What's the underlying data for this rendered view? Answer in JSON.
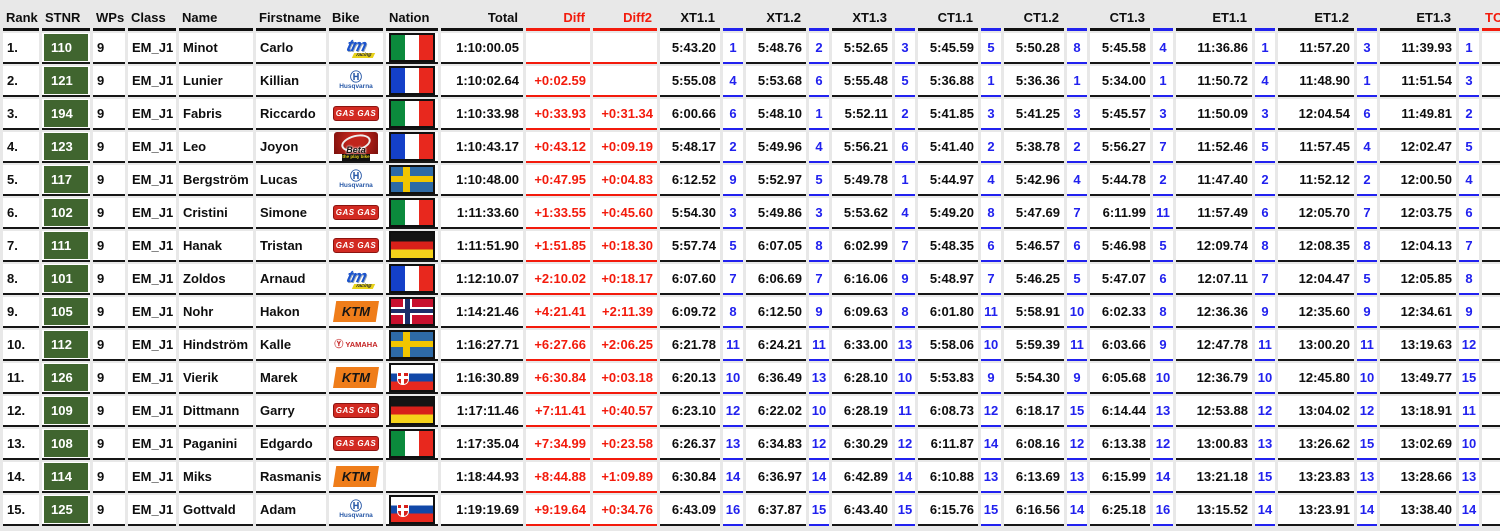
{
  "page": {
    "background": "#e8e8e8"
  },
  "colors": {
    "accent_red": "#f31b0c",
    "accent_blue": "#2121ee",
    "stnr_green": "#40652f",
    "border_black": "#161616",
    "cell_white": "#ffffff"
  },
  "table": {
    "columns": {
      "main": [
        "Rank",
        "STNR",
        "WPs",
        "Class",
        "Name",
        "Firstname",
        "Bike",
        "Nation",
        "Total",
        "Diff",
        "Diff2"
      ],
      "stages": [
        "XT1.1",
        "XT1.2",
        "XT1.3",
        "CT1.1",
        "CT1.2",
        "CT1.3",
        "ET1.1",
        "ET1.2",
        "ET1.3"
      ],
      "tc": "TC-"
    },
    "rows": [
      {
        "rank": "1.",
        "stnr": "110",
        "wps": "9",
        "class": "EM_J1",
        "name": "Minot",
        "firstname": "Carlo",
        "bike": "TM",
        "nation": "ITA",
        "total": "1:10:00.05",
        "diff": "",
        "diff2": "",
        "stages": [
          [
            "5:43.20",
            "1"
          ],
          [
            "5:48.76",
            "2"
          ],
          [
            "5:52.65",
            "3"
          ],
          [
            "5:45.59",
            "5"
          ],
          [
            "5:50.28",
            "8"
          ],
          [
            "5:45.58",
            "4"
          ],
          [
            "11:36.86",
            "1"
          ],
          [
            "11:57.20",
            "3"
          ],
          [
            "11:39.93",
            "1"
          ]
        ],
        "tc": ""
      },
      {
        "rank": "2.",
        "stnr": "121",
        "wps": "9",
        "class": "EM_J1",
        "name": "Lunier",
        "firstname": "Killian",
        "bike": "Husqvarna",
        "nation": "FRA",
        "total": "1:10:02.64",
        "diff": "+0:02.59",
        "diff2": "",
        "stages": [
          [
            "5:55.08",
            "4"
          ],
          [
            "5:53.68",
            "6"
          ],
          [
            "5:55.48",
            "5"
          ],
          [
            "5:36.88",
            "1"
          ],
          [
            "5:36.36",
            "1"
          ],
          [
            "5:34.00",
            "1"
          ],
          [
            "11:50.72",
            "4"
          ],
          [
            "11:48.90",
            "1"
          ],
          [
            "11:51.54",
            "3"
          ]
        ],
        "tc": ""
      },
      {
        "rank": "3.",
        "stnr": "194",
        "wps": "9",
        "class": "EM_J1",
        "name": "Fabris",
        "firstname": "Riccardo",
        "bike": "GasGas",
        "nation": "ITA",
        "total": "1:10:33.98",
        "diff": "+0:33.93",
        "diff2": "+0:31.34",
        "stages": [
          [
            "6:00.66",
            "6"
          ],
          [
            "5:48.10",
            "1"
          ],
          [
            "5:52.11",
            "2"
          ],
          [
            "5:41.85",
            "3"
          ],
          [
            "5:41.25",
            "3"
          ],
          [
            "5:45.57",
            "3"
          ],
          [
            "11:50.09",
            "3"
          ],
          [
            "12:04.54",
            "6"
          ],
          [
            "11:49.81",
            "2"
          ]
        ],
        "tc": ""
      },
      {
        "rank": "4.",
        "stnr": "123",
        "wps": "9",
        "class": "EM_J1",
        "name": "Leo",
        "firstname": "Joyon",
        "bike": "Beta",
        "nation": "FRA",
        "total": "1:10:43.17",
        "diff": "+0:43.12",
        "diff2": "+0:09.19",
        "stages": [
          [
            "5:48.17",
            "2"
          ],
          [
            "5:49.96",
            "4"
          ],
          [
            "5:56.21",
            "6"
          ],
          [
            "5:41.40",
            "2"
          ],
          [
            "5:38.78",
            "2"
          ],
          [
            "5:56.27",
            "7"
          ],
          [
            "11:52.46",
            "5"
          ],
          [
            "11:57.45",
            "4"
          ],
          [
            "12:02.47",
            "5"
          ]
        ],
        "tc": ""
      },
      {
        "rank": "5.",
        "stnr": "117",
        "wps": "9",
        "class": "EM_J1",
        "name": "Bergström",
        "firstname": "Lucas",
        "bike": "Husqvarna",
        "nation": "SWE",
        "total": "1:10:48.00",
        "diff": "+0:47.95",
        "diff2": "+0:04.83",
        "stages": [
          [
            "6:12.52",
            "9"
          ],
          [
            "5:52.97",
            "5"
          ],
          [
            "5:49.78",
            "1"
          ],
          [
            "5:44.97",
            "4"
          ],
          [
            "5:42.96",
            "4"
          ],
          [
            "5:44.78",
            "2"
          ],
          [
            "11:47.40",
            "2"
          ],
          [
            "11:52.12",
            "2"
          ],
          [
            "12:00.50",
            "4"
          ]
        ],
        "tc": ""
      },
      {
        "rank": "6.",
        "stnr": "102",
        "wps": "9",
        "class": "EM_J1",
        "name": "Cristini",
        "firstname": "Simone",
        "bike": "GasGas",
        "nation": "ITA",
        "total": "1:11:33.60",
        "diff": "+1:33.55",
        "diff2": "+0:45.60",
        "stages": [
          [
            "5:54.30",
            "3"
          ],
          [
            "5:49.86",
            "3"
          ],
          [
            "5:53.62",
            "4"
          ],
          [
            "5:49.20",
            "8"
          ],
          [
            "5:47.69",
            "7"
          ],
          [
            "6:11.99",
            "11"
          ],
          [
            "11:57.49",
            "6"
          ],
          [
            "12:05.70",
            "7"
          ],
          [
            "12:03.75",
            "6"
          ]
        ],
        "tc": ""
      },
      {
        "rank": "7.",
        "stnr": "111",
        "wps": "9",
        "class": "EM_J1",
        "name": "Hanak",
        "firstname": "Tristan",
        "bike": "GasGas",
        "nation": "GER",
        "total": "1:11:51.90",
        "diff": "+1:51.85",
        "diff2": "+0:18.30",
        "stages": [
          [
            "5:57.74",
            "5"
          ],
          [
            "6:07.05",
            "8"
          ],
          [
            "6:02.99",
            "7"
          ],
          [
            "5:48.35",
            "6"
          ],
          [
            "5:46.57",
            "6"
          ],
          [
            "5:46.98",
            "5"
          ],
          [
            "12:09.74",
            "8"
          ],
          [
            "12:08.35",
            "8"
          ],
          [
            "12:04.13",
            "7"
          ]
        ],
        "tc": ""
      },
      {
        "rank": "8.",
        "stnr": "101",
        "wps": "9",
        "class": "EM_J1",
        "name": "Zoldos",
        "firstname": "Arnaud",
        "bike": "TM",
        "nation": "FRA",
        "total": "1:12:10.07",
        "diff": "+2:10.02",
        "diff2": "+0:18.17",
        "stages": [
          [
            "6:07.60",
            "7"
          ],
          [
            "6:06.69",
            "7"
          ],
          [
            "6:16.06",
            "9"
          ],
          [
            "5:48.97",
            "7"
          ],
          [
            "5:46.25",
            "5"
          ],
          [
            "5:47.07",
            "6"
          ],
          [
            "12:07.11",
            "7"
          ],
          [
            "12:04.47",
            "5"
          ],
          [
            "12:05.85",
            "8"
          ]
        ],
        "tc": ""
      },
      {
        "rank": "9.",
        "stnr": "105",
        "wps": "9",
        "class": "EM_J1",
        "name": "Nohr",
        "firstname": "Hakon",
        "bike": "KTM",
        "nation": "NOR",
        "total": "1:14:21.46",
        "diff": "+4:21.41",
        "diff2": "+2:11.39",
        "stages": [
          [
            "6:09.72",
            "8"
          ],
          [
            "6:12.50",
            "9"
          ],
          [
            "6:09.63",
            "8"
          ],
          [
            "6:01.80",
            "11"
          ],
          [
            "5:58.91",
            "10"
          ],
          [
            "6:02.33",
            "8"
          ],
          [
            "12:36.36",
            "9"
          ],
          [
            "12:35.60",
            "9"
          ],
          [
            "12:34.61",
            "9"
          ]
        ],
        "tc": ""
      },
      {
        "rank": "10.",
        "stnr": "112",
        "wps": "9",
        "class": "EM_J1",
        "name": "Hindström",
        "firstname": "Kalle",
        "bike": "Yamaha",
        "nation": "SWE",
        "total": "1:16:27.71",
        "diff": "+6:27.66",
        "diff2": "+2:06.25",
        "stages": [
          [
            "6:21.78",
            "11"
          ],
          [
            "6:24.21",
            "11"
          ],
          [
            "6:33.00",
            "13"
          ],
          [
            "5:58.06",
            "10"
          ],
          [
            "5:59.39",
            "11"
          ],
          [
            "6:03.66",
            "9"
          ],
          [
            "12:47.78",
            "11"
          ],
          [
            "13:00.20",
            "11"
          ],
          [
            "13:19.63",
            "12"
          ]
        ],
        "tc": ""
      },
      {
        "rank": "11.",
        "stnr": "126",
        "wps": "9",
        "class": "EM_J1",
        "name": "Vierik",
        "firstname": "Marek",
        "bike": "KTM",
        "nation": "SVK",
        "total": "1:16:30.89",
        "diff": "+6:30.84",
        "diff2": "+0:03.18",
        "stages": [
          [
            "6:20.13",
            "10"
          ],
          [
            "6:36.49",
            "13"
          ],
          [
            "6:28.10",
            "10"
          ],
          [
            "5:53.83",
            "9"
          ],
          [
            "5:54.30",
            "9"
          ],
          [
            "6:05.68",
            "10"
          ],
          [
            "12:36.79",
            "10"
          ],
          [
            "12:45.80",
            "10"
          ],
          [
            "13:49.77",
            "15"
          ]
        ],
        "tc": ""
      },
      {
        "rank": "12.",
        "stnr": "109",
        "wps": "9",
        "class": "EM_J1",
        "name": "Dittmann",
        "firstname": "Garry",
        "bike": "GasGas",
        "nation": "GER",
        "total": "1:17:11.46",
        "diff": "+7:11.41",
        "diff2": "+0:40.57",
        "stages": [
          [
            "6:23.10",
            "12"
          ],
          [
            "6:22.02",
            "10"
          ],
          [
            "6:28.19",
            "11"
          ],
          [
            "6:08.73",
            "12"
          ],
          [
            "6:18.17",
            "15"
          ],
          [
            "6:14.44",
            "13"
          ],
          [
            "12:53.88",
            "12"
          ],
          [
            "13:04.02",
            "12"
          ],
          [
            "13:18.91",
            "11"
          ]
        ],
        "tc": ""
      },
      {
        "rank": "13.",
        "stnr": "108",
        "wps": "9",
        "class": "EM_J1",
        "name": "Paganini",
        "firstname": "Edgardo",
        "bike": "GasGas",
        "nation": "ITA",
        "total": "1:17:35.04",
        "diff": "+7:34.99",
        "diff2": "+0:23.58",
        "stages": [
          [
            "6:26.37",
            "13"
          ],
          [
            "6:34.83",
            "12"
          ],
          [
            "6:30.29",
            "12"
          ],
          [
            "6:11.87",
            "14"
          ],
          [
            "6:08.16",
            "12"
          ],
          [
            "6:13.38",
            "12"
          ],
          [
            "13:00.83",
            "13"
          ],
          [
            "13:26.62",
            "15"
          ],
          [
            "13:02.69",
            "10"
          ]
        ],
        "tc": ""
      },
      {
        "rank": "14.",
        "stnr": "114",
        "wps": "9",
        "class": "EM_J1",
        "name": "Miks",
        "firstname": "Rasmanis",
        "bike": "KTM",
        "nation": "",
        "total": "1:18:44.93",
        "diff": "+8:44.88",
        "diff2": "+1:09.89",
        "stages": [
          [
            "6:30.84",
            "14"
          ],
          [
            "6:36.97",
            "14"
          ],
          [
            "6:42.89",
            "14"
          ],
          [
            "6:10.88",
            "13"
          ],
          [
            "6:13.69",
            "13"
          ],
          [
            "6:15.99",
            "14"
          ],
          [
            "13:21.18",
            "15"
          ],
          [
            "13:23.83",
            "13"
          ],
          [
            "13:28.66",
            "13"
          ]
        ],
        "tc": ""
      },
      {
        "rank": "15.",
        "stnr": "125",
        "wps": "9",
        "class": "EM_J1",
        "name": "Gottvald",
        "firstname": "Adam",
        "bike": "Husqvarna",
        "nation": "SVK",
        "total": "1:19:19.69",
        "diff": "+9:19.64",
        "diff2": "+0:34.76",
        "stages": [
          [
            "6:43.09",
            "16"
          ],
          [
            "6:37.87",
            "15"
          ],
          [
            "6:43.40",
            "15"
          ],
          [
            "6:15.76",
            "15"
          ],
          [
            "6:16.56",
            "14"
          ],
          [
            "6:25.18",
            "16"
          ],
          [
            "13:15.52",
            "14"
          ],
          [
            "13:23.91",
            "14"
          ],
          [
            "13:38.40",
            "14"
          ]
        ],
        "tc": ""
      }
    ]
  },
  "bikes": {
    "TM": {
      "label": "tm",
      "sub": "racing"
    },
    "Husqvarna": {
      "label": "Husqvarna",
      "icon": "Ⓗ"
    },
    "GasGas": {
      "label": "GAS GAS"
    },
    "Beta": {
      "label": "Beta",
      "sub": "the play bike"
    },
    "KTM": {
      "label": "KTM"
    },
    "Yamaha": {
      "label": "YAMAHA",
      "icon": "Ⓨ"
    }
  },
  "nations": {
    "ITA": "italy-flag",
    "FRA": "france-flag",
    "SWE": "sweden-flag",
    "GER": "germany-flag",
    "NOR": "norway-flag",
    "SVK": "slovakia-flag"
  }
}
